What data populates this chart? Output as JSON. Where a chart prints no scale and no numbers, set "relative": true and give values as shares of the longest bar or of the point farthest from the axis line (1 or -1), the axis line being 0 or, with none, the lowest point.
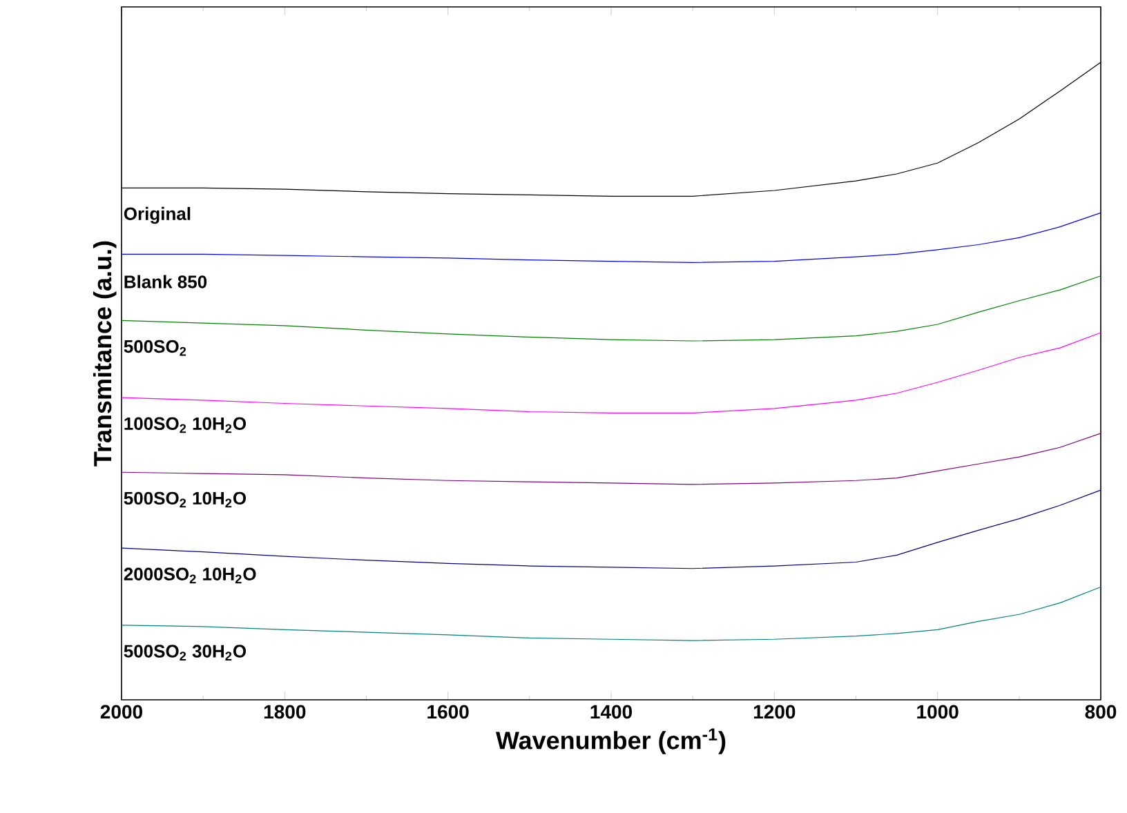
{
  "chart_data": {
    "type": "line",
    "relative": true,
    "xlabel": "Wavenumber (cm$^{-1}$)",
    "ylabel": "Transmitance (a.u.)",
    "xlim": [
      2000,
      800
    ],
    "xticks": [
      2000,
      1800,
      1600,
      1400,
      1200,
      1000,
      800
    ],
    "x": [
      2000,
      1900,
      1800,
      1700,
      1600,
      1500,
      1400,
      1300,
      1200,
      1100,
      1050,
      1000,
      950,
      900,
      850,
      800
    ],
    "series": [
      {
        "name": "Original",
        "color": "#000000",
        "values": [
          0.803,
          0.803,
          0.801,
          0.797,
          0.794,
          0.792,
          0.79,
          0.79,
          0.799,
          0.814,
          0.825,
          0.842,
          0.874,
          0.911,
          0.955,
          1.0
        ]
      },
      {
        "name": "Blank 850",
        "color": "#0000ff",
        "values": [
          0.699,
          0.699,
          0.697,
          0.695,
          0.693,
          0.69,
          0.688,
          0.686,
          0.688,
          0.695,
          0.699,
          0.706,
          0.714,
          0.725,
          0.742,
          0.764
        ]
      },
      {
        "name": "500SO$_{2}$",
        "color": "#008000",
        "values": [
          0.595,
          0.591,
          0.587,
          0.58,
          0.574,
          0.569,
          0.565,
          0.563,
          0.565,
          0.571,
          0.578,
          0.589,
          0.608,
          0.626,
          0.643,
          0.665
        ]
      },
      {
        "name": "100SO$_{2}$ 10H$_{2}$O",
        "color": "#ff00ff",
        "values": [
          0.474,
          0.47,
          0.465,
          0.461,
          0.457,
          0.452,
          0.45,
          0.45,
          0.457,
          0.47,
          0.481,
          0.498,
          0.517,
          0.537,
          0.552,
          0.576
        ]
      },
      {
        "name": "500SO$_{2}$ 10H$_{2}$O",
        "color": "#800080",
        "values": [
          0.357,
          0.355,
          0.353,
          0.348,
          0.344,
          0.342,
          0.34,
          0.338,
          0.34,
          0.344,
          0.348,
          0.359,
          0.37,
          0.381,
          0.396,
          0.418
        ]
      },
      {
        "name": "2000SO$_{2}$ 10H$_{2}$O",
        "color": "#000080",
        "values": [
          0.238,
          0.232,
          0.225,
          0.219,
          0.214,
          0.21,
          0.208,
          0.206,
          0.21,
          0.216,
          0.227,
          0.247,
          0.266,
          0.284,
          0.305,
          0.329
        ]
      },
      {
        "name": "500SO$_{2}$ 30H$_{2}$O",
        "color": "#008080",
        "values": [
          0.117,
          0.115,
          0.11,
          0.106,
          0.102,
          0.097,
          0.095,
          0.093,
          0.095,
          0.1,
          0.104,
          0.11,
          0.123,
          0.134,
          0.152,
          0.177
        ]
      }
    ]
  }
}
